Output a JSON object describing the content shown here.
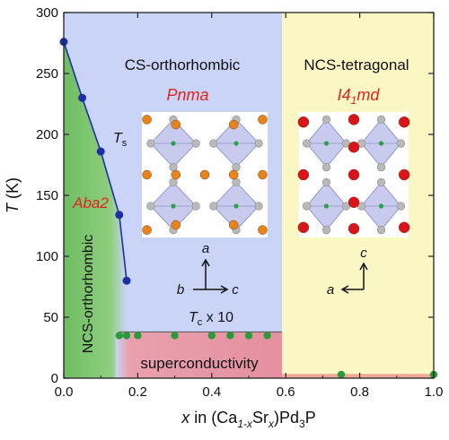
{
  "chart_data": {
    "type": "scatter",
    "title": "",
    "xlabel": {
      "prefix": "x",
      "mid": " in (Ca",
      "sub1": "1-x",
      "mid2": "Sr",
      "sub2": "x",
      "suffix": ")Pd",
      "sub3": "3",
      "suffix2": "P"
    },
    "ylabel": {
      "main": "T",
      "unit": " (K)"
    },
    "xlim": [
      0,
      1.0
    ],
    "ylim": [
      0,
      300
    ],
    "x_ticks": [
      "0.0",
      "0.2",
      "0.4",
      "0.6",
      "0.8",
      "1.0"
    ],
    "y_ticks": [
      "0",
      "50",
      "100",
      "150",
      "200",
      "250",
      "300"
    ],
    "x_tick_values": [
      0,
      0.2,
      0.4,
      0.6,
      0.8,
      1.0
    ],
    "y_tick_values": [
      0,
      50,
      100,
      150,
      200,
      250,
      300
    ],
    "regions": {
      "ncs_ortho_boundary_x": 0.17,
      "tetragonal_boundary_x": 0.59,
      "colors": {
        "cs_ortho": "#c9d4f7",
        "ncs_tetra": "#fbf7c4",
        "ncs_ortho_green": "#7dc46f",
        "superconductivity": "#e9a1ad",
        "ts_line": "#1c2fa7",
        "tc_points": "#2a9a3a",
        "phase_label": "#e0241c"
      }
    },
    "series": [
      {
        "label_main": "T",
        "label_sub": "s",
        "x": [
          0.0,
          0.05,
          0.1,
          0.15,
          0.17
        ],
        "y": [
          276,
          230,
          186,
          134,
          80
        ]
      },
      {
        "label_main": "T",
        "label_sub": "c",
        "label_suffix": " x 10",
        "x": [
          0.15,
          0.17,
          0.2,
          0.3,
          0.4,
          0.45,
          0.5,
          0.55,
          0.75,
          1.0
        ],
        "y": [
          35,
          35,
          35,
          35,
          35,
          35,
          35,
          35,
          3,
          3
        ]
      }
    ],
    "annotations": {
      "cs_ortho": "CS-orthorhombic",
      "ncs_tetra": "NCS-tetragonal",
      "pnma": "Pnma",
      "i41md": {
        "pre": "I4",
        "sub": "1",
        "post": "md"
      },
      "aba2": "Aba2",
      "ncs_ortho": "NCS-orthorhombic",
      "superconductivity": "superconductivity",
      "axes_left": {
        "a": "a",
        "b": "b",
        "c": "c"
      },
      "axes_right": {
        "a": "a",
        "c": "c"
      }
    }
  }
}
